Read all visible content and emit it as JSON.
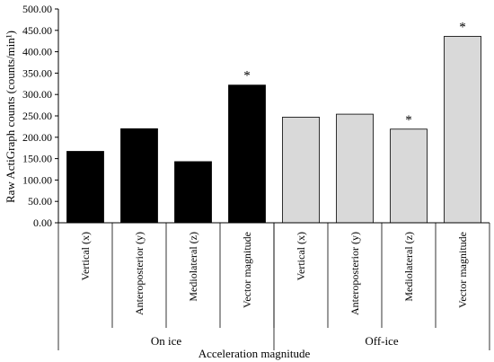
{
  "chart_data": {
    "type": "bar",
    "title": "",
    "ylabel": "Raw ActiGraph counts (counts/min¹)",
    "xlabel": "Acceleration magnitude",
    "ylim": [
      0,
      500
    ],
    "ytick_labels": [
      "0.00",
      "50.00",
      "100.00",
      "150.00",
      "200.00",
      "250.00",
      "300.00",
      "350.00",
      "400.00",
      "450.00",
      "500.00"
    ],
    "categories": [
      "Vertical (x)",
      "Anteroposterior (y)",
      "Mediolateral (z)",
      "Vector magnitude",
      "Vertical (x)",
      "Anteroposterior (y)",
      "Mediolateral (z)",
      "Vector magnitude"
    ],
    "values": [
      167,
      220,
      143,
      322,
      247,
      254,
      219,
      436
    ],
    "groups": [
      {
        "name": "On ice",
        "count": 4,
        "color": "#000000"
      },
      {
        "name": "Off-ice",
        "count": 4,
        "color": "#d9d9d9"
      }
    ],
    "annotations": [
      "",
      "",
      "",
      "*",
      "",
      "",
      "*",
      "*"
    ],
    "grid": false,
    "legend": "none"
  }
}
